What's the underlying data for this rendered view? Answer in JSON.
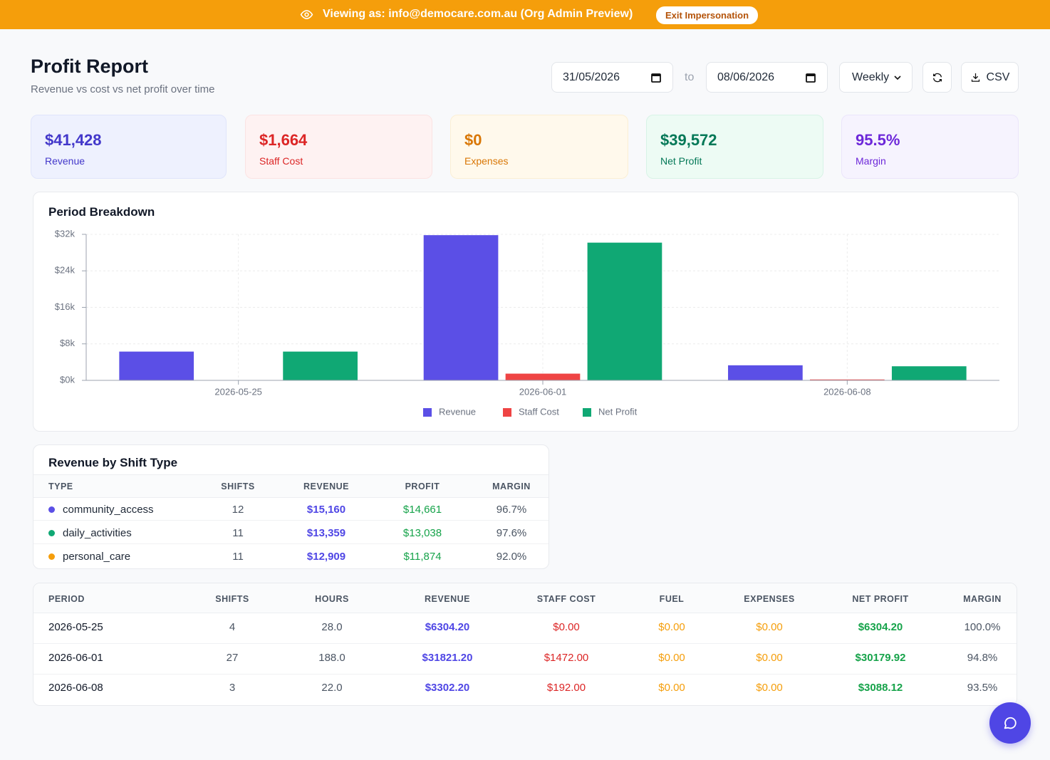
{
  "banner": {
    "prefix": "Viewing as:",
    "email": "info@democare.com.au",
    "suffix": "(Org Admin Preview)",
    "button": "Exit Impersonation"
  },
  "header": {
    "title": "Profit Report",
    "subtitle": "Revenue vs cost vs net profit over time"
  },
  "controls": {
    "start": "31/05/2026",
    "to": "to",
    "end": "08/06/2026",
    "period": "Weekly",
    "csv": "CSV"
  },
  "stats": [
    {
      "value": "$41,428",
      "label": "Revenue"
    },
    {
      "value": "$1,664",
      "label": "Staff Cost"
    },
    {
      "value": "$0",
      "label": "Expenses"
    },
    {
      "value": "$39,572",
      "label": "Net Profit"
    },
    {
      "value": "95.5%",
      "label": "Margin"
    }
  ],
  "chart_data": {
    "type": "bar",
    "title": "Period Breakdown",
    "categories": [
      "2026-05-25",
      "2026-06-01",
      "2026-06-08"
    ],
    "series": [
      {
        "name": "Revenue",
        "color": "#5b4fe6",
        "values": [
          6304.2,
          31821.2,
          3302.2
        ]
      },
      {
        "name": "Staff Cost",
        "color": "#ef4444",
        "values": [
          0,
          1472,
          192
        ]
      },
      {
        "name": "Net Profit",
        "color": "#10a874",
        "values": [
          6304.2,
          30179.92,
          3088.12
        ]
      }
    ],
    "ylim": [
      0,
      32000
    ],
    "yticks": [
      {
        "value": 0,
        "label": "$0k"
      },
      {
        "value": 8000,
        "label": "$8k"
      },
      {
        "value": 16000,
        "label": "$16k"
      },
      {
        "value": 24000,
        "label": "$24k"
      },
      {
        "value": 32000,
        "label": "$32k"
      }
    ],
    "grid": true,
    "legend": "bottom"
  },
  "shift_table": {
    "title": "Revenue by Shift Type",
    "columns": [
      "TYPE",
      "SHIFTS",
      "REVENUE",
      "PROFIT",
      "MARGIN"
    ],
    "markers": [
      "#5b4fe6",
      "#10a874",
      "#f59e0b"
    ],
    "rows": [
      [
        "community_access",
        "12",
        "$15,160",
        "$14,661",
        "96.7%"
      ],
      [
        "daily_activities",
        "11",
        "$13,359",
        "$13,038",
        "97.6%"
      ],
      [
        "personal_care",
        "11",
        "$12,909",
        "$11,874",
        "92.0%"
      ]
    ]
  },
  "period_table": {
    "columns": [
      "PERIOD",
      "SHIFTS",
      "HOURS",
      "REVENUE",
      "STAFF COST",
      "FUEL",
      "EXPENSES",
      "NET PROFIT",
      "MARGIN"
    ],
    "rows": [
      [
        "2026-05-25",
        "4",
        "28.0",
        "$6304.20",
        "$0.00",
        "$0.00",
        "$0.00",
        "$6304.20",
        "100.0%"
      ],
      [
        "2026-06-01",
        "27",
        "188.0",
        "$31821.20",
        "$1472.00",
        "$0.00",
        "$0.00",
        "$30179.92",
        "94.8%"
      ],
      [
        "2026-06-08",
        "3",
        "22.0",
        "$3302.20",
        "$192.00",
        "$0.00",
        "$0.00",
        "$3088.12",
        "93.5%"
      ]
    ]
  }
}
